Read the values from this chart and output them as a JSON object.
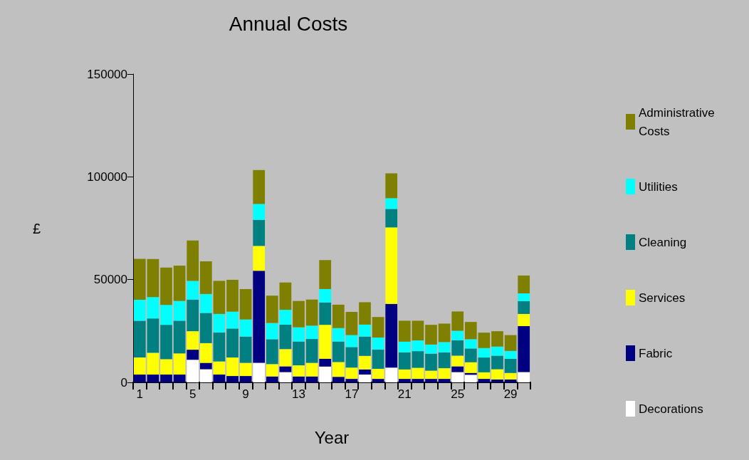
{
  "chart_data": {
    "type": "bar",
    "title": "Annual Costs",
    "xlabel": "Year",
    "ylabel": "£",
    "stacked": true,
    "grid": false,
    "legend": "right",
    "categories": [
      "1",
      null,
      null,
      null,
      "5",
      null,
      null,
      null,
      "9",
      null,
      null,
      null,
      "13",
      null,
      null,
      null,
      "17",
      null,
      null,
      null,
      "21",
      null,
      null,
      null,
      "25",
      null,
      null,
      null,
      "29",
      null
    ],
    "ylim": [
      0,
      150000
    ],
    "yticks": [
      0,
      50000,
      100000,
      150000
    ],
    "series": [
      {
        "name": "Decorations",
        "color": "#ffffff",
        "values": [
          0,
          0,
          0,
          0,
          11000,
          6400,
          0,
          0,
          0,
          9500,
          0,
          5000,
          0,
          0,
          7700,
          0,
          0,
          3800,
          0,
          7200,
          0,
          0,
          0,
          0,
          5000,
          3700,
          0,
          0,
          0,
          5000
        ]
      },
      {
        "name": "Fabric",
        "color": "#000080",
        "values": [
          3800,
          3800,
          3800,
          3800,
          4900,
          3100,
          3800,
          3100,
          3100,
          44800,
          2900,
          2800,
          2900,
          2900,
          3800,
          2700,
          1700,
          2500,
          1700,
          31000,
          1700,
          1700,
          1700,
          1700,
          2800,
          900,
          1700,
          1400,
          1400,
          22400
        ]
      },
      {
        "name": "Services",
        "color": "#ffff00",
        "values": [
          8300,
          10600,
          7500,
          10300,
          9000,
          9600,
          6400,
          9000,
          6400,
          12100,
          6000,
          8400,
          5400,
          6600,
          16500,
          7200,
          5500,
          6600,
          4900,
          37200,
          4600,
          5400,
          4000,
          5200,
          5200,
          5200,
          3200,
          5000,
          3200,
          5900
        ]
      },
      {
        "name": "Cleaning",
        "color": "#008080",
        "values": [
          17900,
          16700,
          16700,
          15900,
          15400,
          14700,
          14100,
          14100,
          12800,
          12700,
          12100,
          11900,
          11600,
          11600,
          10900,
          10000,
          10000,
          9400,
          9400,
          9000,
          8300,
          8100,
          8300,
          7700,
          7500,
          6700,
          7200,
          6600,
          6900,
          6200
        ]
      },
      {
        "name": "Utilities",
        "color": "#00ffff",
        "values": [
          10200,
          10400,
          9700,
          9600,
          9100,
          9200,
          9000,
          8200,
          8300,
          7700,
          7900,
          7200,
          6900,
          6500,
          6500,
          6500,
          5800,
          5800,
          5800,
          5200,
          5200,
          5200,
          4400,
          5000,
          4600,
          4500,
          4600,
          4400,
          3800,
          3800
        ]
      },
      {
        "name": "Administrative Costs",
        "color": "#808000",
        "values": [
          19900,
          18500,
          18200,
          17200,
          19600,
          15900,
          16100,
          15500,
          14800,
          16500,
          13300,
          13300,
          12800,
          12700,
          14100,
          11400,
          11300,
          10900,
          10000,
          12100,
          10200,
          9600,
          9600,
          9000,
          9400,
          8400,
          7500,
          7500,
          7700,
          8700
        ]
      }
    ]
  }
}
